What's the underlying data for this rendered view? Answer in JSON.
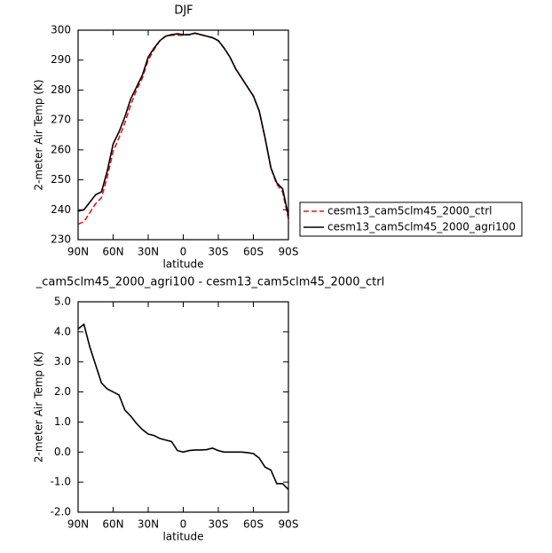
{
  "chart_data": [
    {
      "type": "line",
      "title": "DJF",
      "xlabel": "latitude",
      "ylabel": "2-meter Air Temp (K)",
      "x": [
        90,
        85,
        80,
        75,
        70,
        65,
        60,
        55,
        50,
        45,
        40,
        35,
        30,
        25,
        20,
        15,
        10,
        5,
        0,
        -5,
        -10,
        -15,
        -20,
        -25,
        -30,
        -35,
        -40,
        -45,
        -50,
        -55,
        -60,
        -65,
        -70,
        -75,
        -80,
        -85,
        -90
      ],
      "series": [
        {
          "name": "cesm13_cam5clm45_2000_ctrl",
          "color": "#e8111a",
          "dash": true,
          "values": [
            235.2,
            236,
            239,
            242,
            244,
            251,
            259.5,
            264,
            269,
            275,
            280,
            284,
            290,
            293.5,
            296.5,
            298,
            298.3,
            298.3,
            298.3,
            298.5,
            299,
            298.5,
            298,
            297.5,
            296.5,
            294,
            291,
            287,
            284,
            281,
            278,
            273,
            264,
            254,
            248.5,
            246,
            237
          ]
        },
        {
          "name": "cesm13_cam5clm45_2000_agri100",
          "color": "#000000",
          "dash": false,
          "values": [
            239.5,
            240,
            242.5,
            245,
            246,
            253,
            262,
            266,
            271,
            277,
            281,
            285,
            291,
            294,
            296.5,
            298,
            298.5,
            298.8,
            298.5,
            298.5,
            299,
            298.5,
            298,
            297.5,
            296.5,
            294,
            291,
            287,
            284,
            281,
            278,
            273,
            264,
            254,
            249,
            247,
            238
          ]
        }
      ],
      "xlim": [
        90,
        -90
      ],
      "xticks": [
        {
          "value": 90,
          "label": "90N"
        },
        {
          "value": 60,
          "label": "60N"
        },
        {
          "value": 30,
          "label": "30N"
        },
        0,
        {
          "value": -30,
          "label": "30S"
        },
        {
          "value": -60,
          "label": "60S"
        },
        {
          "value": -90,
          "label": "90S"
        }
      ],
      "ylim": [
        230,
        300
      ],
      "yticks": [
        230,
        240,
        250,
        260,
        270,
        280,
        290,
        300
      ],
      "legend": "outside-right"
    },
    {
      "type": "line",
      "title": "_cam5clm45_2000_agri100 - cesm13_cam5clm45_2000_ctrl",
      "xlabel": "latitude",
      "ylabel": "2-meter Air Temp (K)",
      "x": [
        90,
        85,
        80,
        75,
        70,
        65,
        60,
        55,
        50,
        45,
        40,
        35,
        30,
        25,
        20,
        15,
        10,
        5,
        0,
        -5,
        -10,
        -15,
        -20,
        -25,
        -30,
        -35,
        -40,
        -45,
        -50,
        -55,
        -60,
        -65,
        -70,
        -75,
        -80,
        -85,
        -90
      ],
      "series": [
        {
          "color": "#000000",
          "dash": false,
          "values": [
            4.1,
            4.25,
            3.5,
            2.9,
            2.3,
            2.1,
            2.0,
            1.9,
            1.4,
            1.2,
            0.95,
            0.75,
            0.6,
            0.55,
            0.45,
            0.4,
            0.35,
            0.05,
            0.0,
            0.05,
            0.07,
            0.07,
            0.08,
            0.13,
            0.05,
            0.0,
            0.0,
            0.0,
            0.0,
            -0.02,
            -0.05,
            -0.2,
            -0.5,
            -0.6,
            -1.05,
            -1.05,
            -1.25
          ]
        }
      ],
      "xlim": [
        90,
        -90
      ],
      "xticks": [
        {
          "value": 90,
          "label": "90N"
        },
        {
          "value": 60,
          "label": "60N"
        },
        {
          "value": 30,
          "label": "30N"
        },
        0,
        {
          "value": -30,
          "label": "30S"
        },
        {
          "value": -60,
          "label": "60S"
        },
        {
          "value": -90,
          "label": "90S"
        }
      ],
      "ylim": [
        -2,
        5
      ],
      "yticks": [
        {
          "value": -2,
          "label": "-2.0"
        },
        {
          "value": -1,
          "label": "-1.0"
        },
        {
          "value": 0,
          "label": "0.0"
        },
        {
          "value": 1,
          "label": "1.0"
        },
        {
          "value": 2,
          "label": "2.0"
        },
        {
          "value": 3,
          "label": "3.0"
        },
        {
          "value": 4,
          "label": "4.0"
        },
        {
          "value": 5,
          "label": "5.0"
        }
      ]
    }
  ]
}
